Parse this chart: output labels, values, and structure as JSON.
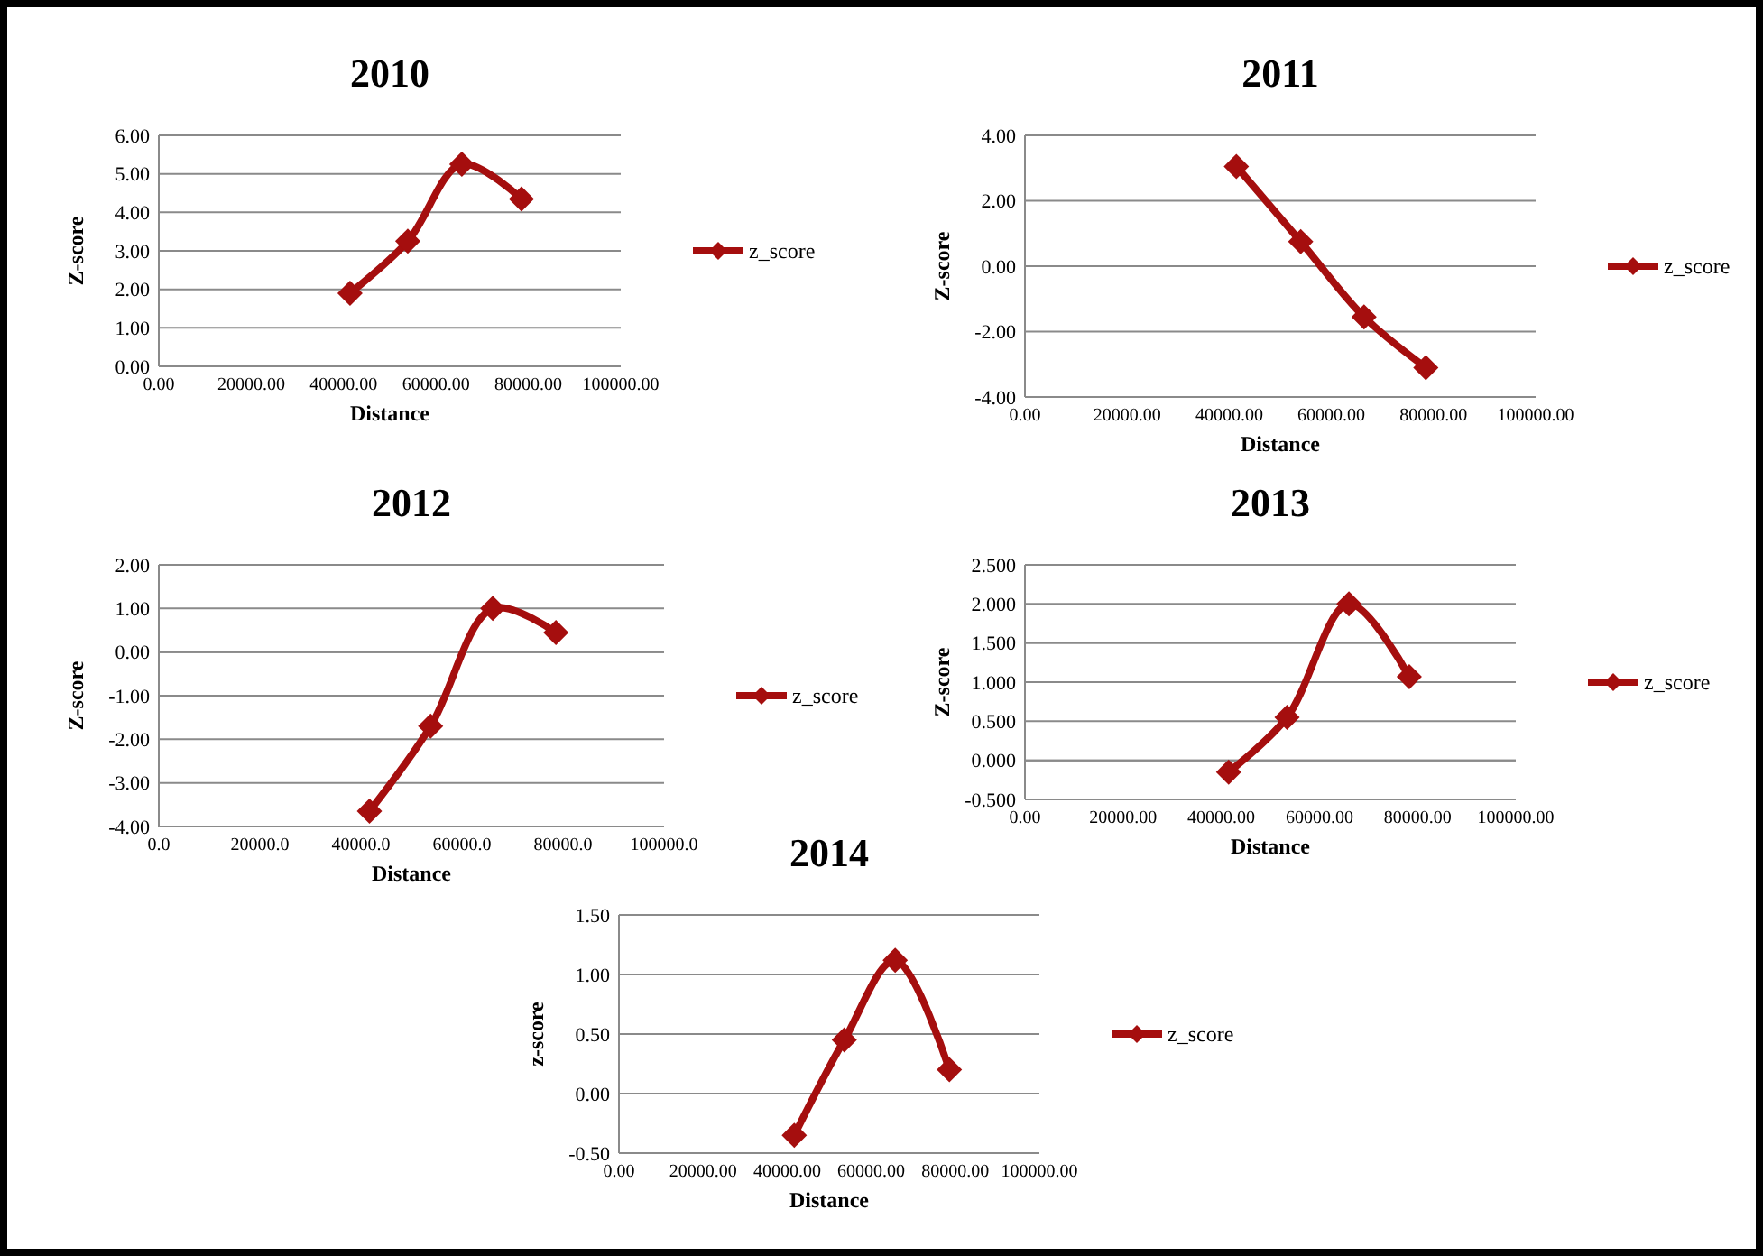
{
  "chart_data": [
    {
      "type": "line",
      "title": "2010",
      "xlabel": "Distance",
      "ylabel": "Z-score",
      "x": [
        41400,
        53900,
        65600,
        78500
      ],
      "xlim": [
        0,
        100000
      ],
      "xticks": [
        {
          "value": 0,
          "label": "0.00"
        },
        {
          "value": 20000,
          "label": "20000.00"
        },
        {
          "value": 40000,
          "label": "40000.00"
        },
        {
          "value": 60000,
          "label": "60000.00"
        },
        {
          "value": 80000,
          "label": "80000.00"
        },
        {
          "value": 100000,
          "label": "100000.00"
        }
      ],
      "ylim": [
        0,
        6
      ],
      "yticks": [
        {
          "value": 0,
          "label": "0.00"
        },
        {
          "value": 1,
          "label": "1.00"
        },
        {
          "value": 2,
          "label": "2.00"
        },
        {
          "value": 3,
          "label": "3.00"
        },
        {
          "value": 4,
          "label": "4.00"
        },
        {
          "value": 5,
          "label": "5.00"
        },
        {
          "value": 6,
          "label": "6.00"
        }
      ],
      "grid": "y",
      "legend": "right",
      "marker": "diamond",
      "line_style": "solid",
      "series": [
        {
          "name": "z_score",
          "color": "#a50e0e",
          "values": [
            1.9,
            3.25,
            5.25,
            4.35
          ]
        }
      ]
    },
    {
      "type": "line",
      "title": "2011",
      "xlabel": "Distance",
      "ylabel": "Z-score",
      "x": [
        41400,
        54000,
        66400,
        78500
      ],
      "xlim": [
        0,
        100000
      ],
      "xticks": [
        {
          "value": 0,
          "label": "0.00"
        },
        {
          "value": 20000,
          "label": "20000.00"
        },
        {
          "value": 40000,
          "label": "40000.00"
        },
        {
          "value": 60000,
          "label": "60000.00"
        },
        {
          "value": 80000,
          "label": "80000.00"
        },
        {
          "value": 100000,
          "label": "100000.00"
        }
      ],
      "ylim": [
        -4,
        4
      ],
      "yticks": [
        {
          "value": -4,
          "label": "-4.00"
        },
        {
          "value": -2,
          "label": "-2.00"
        },
        {
          "value": 0,
          "label": "0.00"
        },
        {
          "value": 2,
          "label": "2.00"
        },
        {
          "value": 4,
          "label": "4.00"
        }
      ],
      "grid": "y",
      "legend": "right",
      "marker": "diamond",
      "line_style": "solid",
      "series": [
        {
          "name": "z_score",
          "color": "#a50e0e",
          "values": [
            3.05,
            0.75,
            -1.55,
            -3.1
          ]
        }
      ]
    },
    {
      "type": "line",
      "title": "2012",
      "xlabel": "Distance",
      "ylabel": "Z-score",
      "x": [
        41700,
        53800,
        66100,
        78600
      ],
      "xlim": [
        0,
        100000
      ],
      "xticks": [
        {
          "value": 0,
          "label": "0.0"
        },
        {
          "value": 20000,
          "label": "20000.0"
        },
        {
          "value": 40000,
          "label": "40000.0"
        },
        {
          "value": 60000,
          "label": "60000.0"
        },
        {
          "value": 80000,
          "label": "80000.0"
        },
        {
          "value": 100000,
          "label": "100000.0"
        }
      ],
      "ylim": [
        -4,
        2
      ],
      "yticks": [
        {
          "value": -4,
          "label": "-4.00"
        },
        {
          "value": -3,
          "label": "-3.00"
        },
        {
          "value": -2,
          "label": "-2.00"
        },
        {
          "value": -1,
          "label": "-1.00"
        },
        {
          "value": 0,
          "label": "0.00"
        },
        {
          "value": 1,
          "label": "1.00"
        },
        {
          "value": 2,
          "label": "2.00"
        }
      ],
      "grid": "y",
      "legend": "right",
      "marker": "diamond",
      "line_style": "solid",
      "series": [
        {
          "name": "z_score",
          "color": "#a50e0e",
          "values": [
            -3.65,
            -1.7,
            1.0,
            0.45
          ]
        }
      ]
    },
    {
      "type": "line",
      "title": "2013",
      "xlabel": "Distance",
      "ylabel": "Z-score",
      "x": [
        41500,
        53400,
        66000,
        78300
      ],
      "xlim": [
        0,
        100000
      ],
      "xticks": [
        {
          "value": 0,
          "label": "0.00"
        },
        {
          "value": 20000,
          "label": "20000.00"
        },
        {
          "value": 40000,
          "label": "40000.00"
        },
        {
          "value": 60000,
          "label": "60000.00"
        },
        {
          "value": 80000,
          "label": "80000.00"
        },
        {
          "value": 100000,
          "label": "100000.00"
        }
      ],
      "ylim": [
        -0.5,
        2.5
      ],
      "yticks": [
        {
          "value": -0.5,
          "label": "-0.500"
        },
        {
          "value": 0,
          "label": "0.000"
        },
        {
          "value": 0.5,
          "label": "0.500"
        },
        {
          "value": 1,
          "label": "1.000"
        },
        {
          "value": 1.5,
          "label": "1.500"
        },
        {
          "value": 2,
          "label": "2.000"
        },
        {
          "value": 2.5,
          "label": "2.500"
        }
      ],
      "grid": "y",
      "legend": "right",
      "marker": "diamond",
      "line_style": "solid",
      "series": [
        {
          "name": "z_score",
          "color": "#a50e0e",
          "values": [
            -0.15,
            0.55,
            2.0,
            1.07
          ]
        }
      ]
    },
    {
      "type": "line",
      "title": "2014",
      "xlabel": "Distance",
      "ylabel": "z-score",
      "x": [
        41700,
        53600,
        65700,
        78600
      ],
      "xlim": [
        0,
        100000
      ],
      "xticks": [
        {
          "value": 0,
          "label": "0.00"
        },
        {
          "value": 20000,
          "label": "20000.00"
        },
        {
          "value": 40000,
          "label": "40000.00"
        },
        {
          "value": 60000,
          "label": "60000.00"
        },
        {
          "value": 80000,
          "label": "80000.00"
        },
        {
          "value": 100000,
          "label": "100000.00"
        }
      ],
      "ylim": [
        -0.5,
        1.5
      ],
      "yticks": [
        {
          "value": -0.5,
          "label": "-0.50"
        },
        {
          "value": 0,
          "label": "0.00"
        },
        {
          "value": 0.5,
          "label": "0.50"
        },
        {
          "value": 1,
          "label": "1.00"
        },
        {
          "value": 1.5,
          "label": "1.50"
        }
      ],
      "grid": "y",
      "legend": "right",
      "marker": "diamond",
      "line_style": "solid",
      "series": [
        {
          "name": "z_score",
          "color": "#a50e0e",
          "values": [
            -0.35,
            0.45,
            1.12,
            0.2
          ]
        }
      ]
    }
  ]
}
